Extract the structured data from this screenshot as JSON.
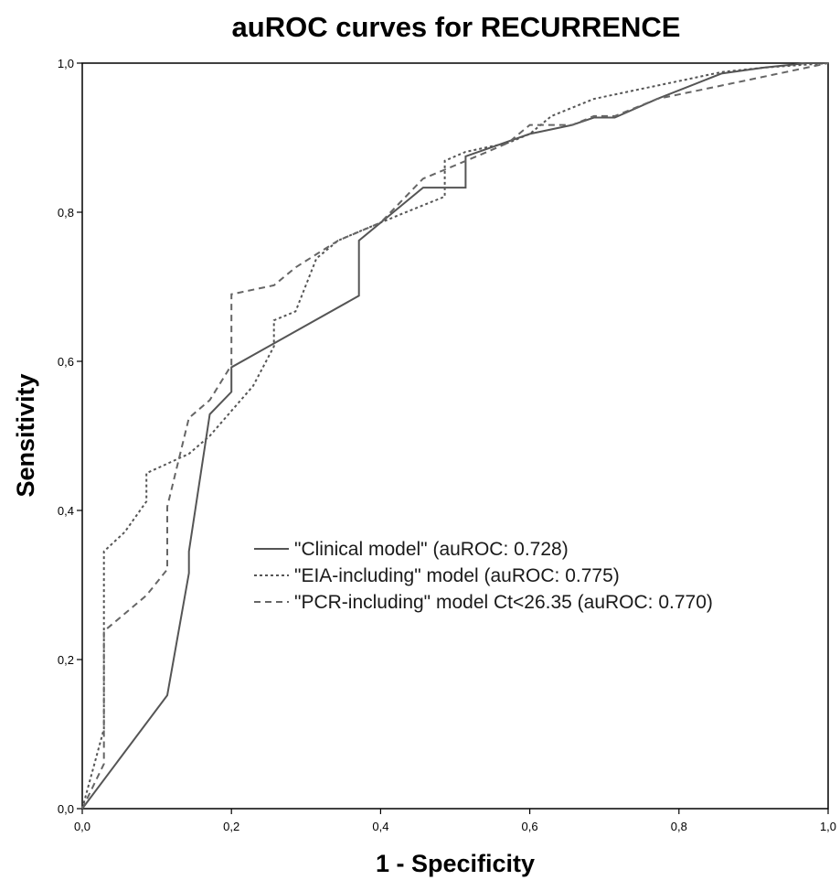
{
  "chart_data": {
    "type": "line",
    "title": "auROC curves for RECURRENCE",
    "xlabel": "1 - Specificity",
    "ylabel": "Sensitivity",
    "xlim": [
      0,
      1
    ],
    "ylim": [
      0,
      1
    ],
    "x_ticks": [
      "0,0",
      "0,2",
      "0,4",
      "0,6",
      "0,8",
      "1,0"
    ],
    "y_ticks": [
      "0,0",
      "0,2",
      "0,4",
      "0,6",
      "0,8",
      "1,0"
    ],
    "grid": false,
    "legend_position": "center",
    "series": [
      {
        "name": "\"Clinical model\" (auROC: 0.728)",
        "line_style": "solid",
        "color": "#555555",
        "points": [
          [
            0,
            0
          ],
          [
            0.114,
            0.152
          ],
          [
            0.143,
            0.316
          ],
          [
            0.143,
            0.345
          ],
          [
            0.171,
            0.529
          ],
          [
            0.2,
            0.559
          ],
          [
            0.2,
            0.592
          ],
          [
            0.371,
            0.688
          ],
          [
            0.371,
            0.762
          ],
          [
            0.457,
            0.833
          ],
          [
            0.514,
            0.833
          ],
          [
            0.514,
            0.875
          ],
          [
            0.6,
            0.905
          ],
          [
            0.657,
            0.917
          ],
          [
            0.686,
            0.927
          ],
          [
            0.714,
            0.927
          ],
          [
            0.771,
            0.952
          ],
          [
            0.857,
            0.986
          ],
          [
            0.914,
            0.994
          ],
          [
            0.971,
            1.0
          ],
          [
            1.0,
            1.0
          ]
        ]
      },
      {
        "name": "\"EIA-including\" model (auROC: 0.775)",
        "line_style": "dotted",
        "color": "#555555",
        "points": [
          [
            0,
            0
          ],
          [
            0.029,
            0.107
          ],
          [
            0.029,
            0.345
          ],
          [
            0.057,
            0.371
          ],
          [
            0.086,
            0.412
          ],
          [
            0.086,
            0.45
          ],
          [
            0.143,
            0.476
          ],
          [
            0.171,
            0.5
          ],
          [
            0.229,
            0.567
          ],
          [
            0.257,
            0.62
          ],
          [
            0.257,
            0.655
          ],
          [
            0.286,
            0.667
          ],
          [
            0.314,
            0.738
          ],
          [
            0.343,
            0.762
          ],
          [
            0.371,
            0.774
          ],
          [
            0.429,
            0.798
          ],
          [
            0.486,
            0.821
          ],
          [
            0.486,
            0.869
          ],
          [
            0.514,
            0.881
          ],
          [
            0.571,
            0.893
          ],
          [
            0.6,
            0.905
          ],
          [
            0.629,
            0.929
          ],
          [
            0.686,
            0.952
          ],
          [
            0.743,
            0.964
          ],
          [
            0.8,
            0.976
          ],
          [
            0.857,
            0.988
          ],
          [
            0.914,
            0.994
          ],
          [
            1.0,
            1.0
          ]
        ]
      },
      {
        "name": "\"PCR-including\" model Ct<26.35 (auROC: 0.770)",
        "line_style": "dashed",
        "color": "#666666",
        "points": [
          [
            0,
            0
          ],
          [
            0.029,
            0.06
          ],
          [
            0.029,
            0.238
          ],
          [
            0.086,
            0.286
          ],
          [
            0.114,
            0.321
          ],
          [
            0.114,
            0.405
          ],
          [
            0.143,
            0.524
          ],
          [
            0.171,
            0.548
          ],
          [
            0.2,
            0.595
          ],
          [
            0.2,
            0.69
          ],
          [
            0.257,
            0.702
          ],
          [
            0.286,
            0.726
          ],
          [
            0.343,
            0.762
          ],
          [
            0.4,
            0.786
          ],
          [
            0.457,
            0.845
          ],
          [
            0.486,
            0.857
          ],
          [
            0.543,
            0.881
          ],
          [
            0.571,
            0.893
          ],
          [
            0.6,
            0.917
          ],
          [
            0.657,
            0.917
          ],
          [
            0.686,
            0.929
          ],
          [
            0.714,
            0.929
          ],
          [
            0.771,
            0.952
          ],
          [
            0.829,
            0.964
          ],
          [
            0.886,
            0.976
          ],
          [
            0.943,
            0.988
          ],
          [
            1.0,
            1.0
          ]
        ]
      }
    ]
  }
}
